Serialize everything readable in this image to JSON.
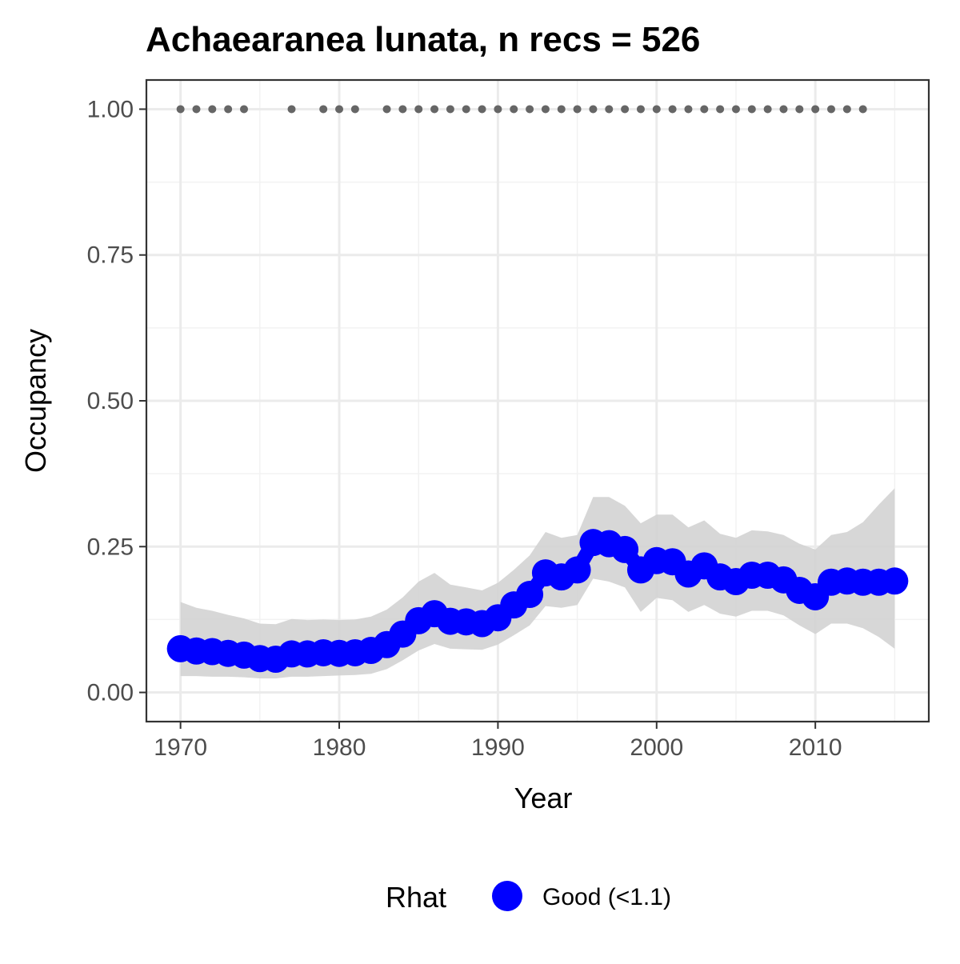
{
  "chart_data": {
    "type": "line",
    "title": "Achaearanea lunata, n recs = 526",
    "xlabel": "Year",
    "ylabel": "Occupancy",
    "xlim": [
      1967.85,
      2017.15
    ],
    "ylim": [
      -0.05,
      1.05
    ],
    "x_ticks": [
      1970,
      1980,
      1990,
      2000,
      2010
    ],
    "x_tick_labels": [
      "1970",
      "1980",
      "1990",
      "2000",
      "2010"
    ],
    "y_ticks": [
      0,
      0.25,
      0.5,
      0.75,
      1.0
    ],
    "y_tick_labels": [
      "0.00",
      "0.25",
      "0.50",
      "0.75",
      "1.00"
    ],
    "grid": true,
    "series": [
      {
        "name": "Good (<1.1)",
        "color": "#0000ff",
        "x": [
          1970,
          1971,
          1972,
          1973,
          1974,
          1975,
          1976,
          1977,
          1978,
          1979,
          1980,
          1981,
          1982,
          1983,
          1984,
          1985,
          1986,
          1987,
          1988,
          1989,
          1990,
          1991,
          1992,
          1993,
          1994,
          1995,
          1996,
          1997,
          1998,
          1999,
          2000,
          2001,
          2002,
          2003,
          2004,
          2005,
          2006,
          2007,
          2008,
          2009,
          2010,
          2011,
          2012,
          2013,
          2014,
          2015
        ],
        "y": [
          0.075,
          0.071,
          0.07,
          0.067,
          0.064,
          0.058,
          0.057,
          0.066,
          0.066,
          0.068,
          0.067,
          0.068,
          0.072,
          0.082,
          0.1,
          0.123,
          0.135,
          0.122,
          0.121,
          0.118,
          0.128,
          0.15,
          0.168,
          0.205,
          0.198,
          0.21,
          0.257,
          0.255,
          0.245,
          0.21,
          0.226,
          0.224,
          0.203,
          0.217,
          0.198,
          0.19,
          0.201,
          0.201,
          0.193,
          0.175,
          0.164,
          0.189,
          0.191,
          0.189,
          0.189,
          0.191
        ],
        "lower": [
          0.028,
          0.028,
          0.027,
          0.027,
          0.026,
          0.024,
          0.024,
          0.027,
          0.027,
          0.028,
          0.029,
          0.03,
          0.032,
          0.04,
          0.055,
          0.072,
          0.083,
          0.075,
          0.074,
          0.073,
          0.082,
          0.098,
          0.115,
          0.148,
          0.145,
          0.15,
          0.195,
          0.19,
          0.18,
          0.138,
          0.162,
          0.158,
          0.138,
          0.15,
          0.135,
          0.13,
          0.14,
          0.14,
          0.132,
          0.115,
          0.1,
          0.118,
          0.118,
          0.11,
          0.095,
          0.075
        ],
        "upper": [
          0.155,
          0.145,
          0.14,
          0.133,
          0.127,
          0.118,
          0.117,
          0.126,
          0.124,
          0.125,
          0.124,
          0.125,
          0.13,
          0.142,
          0.163,
          0.19,
          0.205,
          0.185,
          0.18,
          0.175,
          0.188,
          0.21,
          0.235,
          0.275,
          0.265,
          0.27,
          0.335,
          0.335,
          0.32,
          0.29,
          0.305,
          0.305,
          0.283,
          0.295,
          0.272,
          0.265,
          0.278,
          0.276,
          0.27,
          0.255,
          0.245,
          0.27,
          0.275,
          0.292,
          0.322,
          0.35
        ]
      }
    ],
    "record_years": [
      1970,
      1971,
      1972,
      1973,
      1974,
      1977,
      1979,
      1980,
      1981,
      1983,
      1984,
      1985,
      1986,
      1987,
      1988,
      1989,
      1990,
      1991,
      1992,
      1993,
      1994,
      1995,
      1996,
      1997,
      1998,
      1999,
      2000,
      2001,
      2002,
      2003,
      2004,
      2005,
      2006,
      2007,
      2008,
      2009,
      2010,
      2011,
      2012,
      2013
    ],
    "record_value": 1.0,
    "ribbon_color": "#d3d3d3",
    "record_color": "#666666",
    "legend": {
      "position": "bottom",
      "title": "Rhat",
      "entries": [
        {
          "label": "Good (<1.1)",
          "color": "#0000ff"
        }
      ]
    }
  }
}
